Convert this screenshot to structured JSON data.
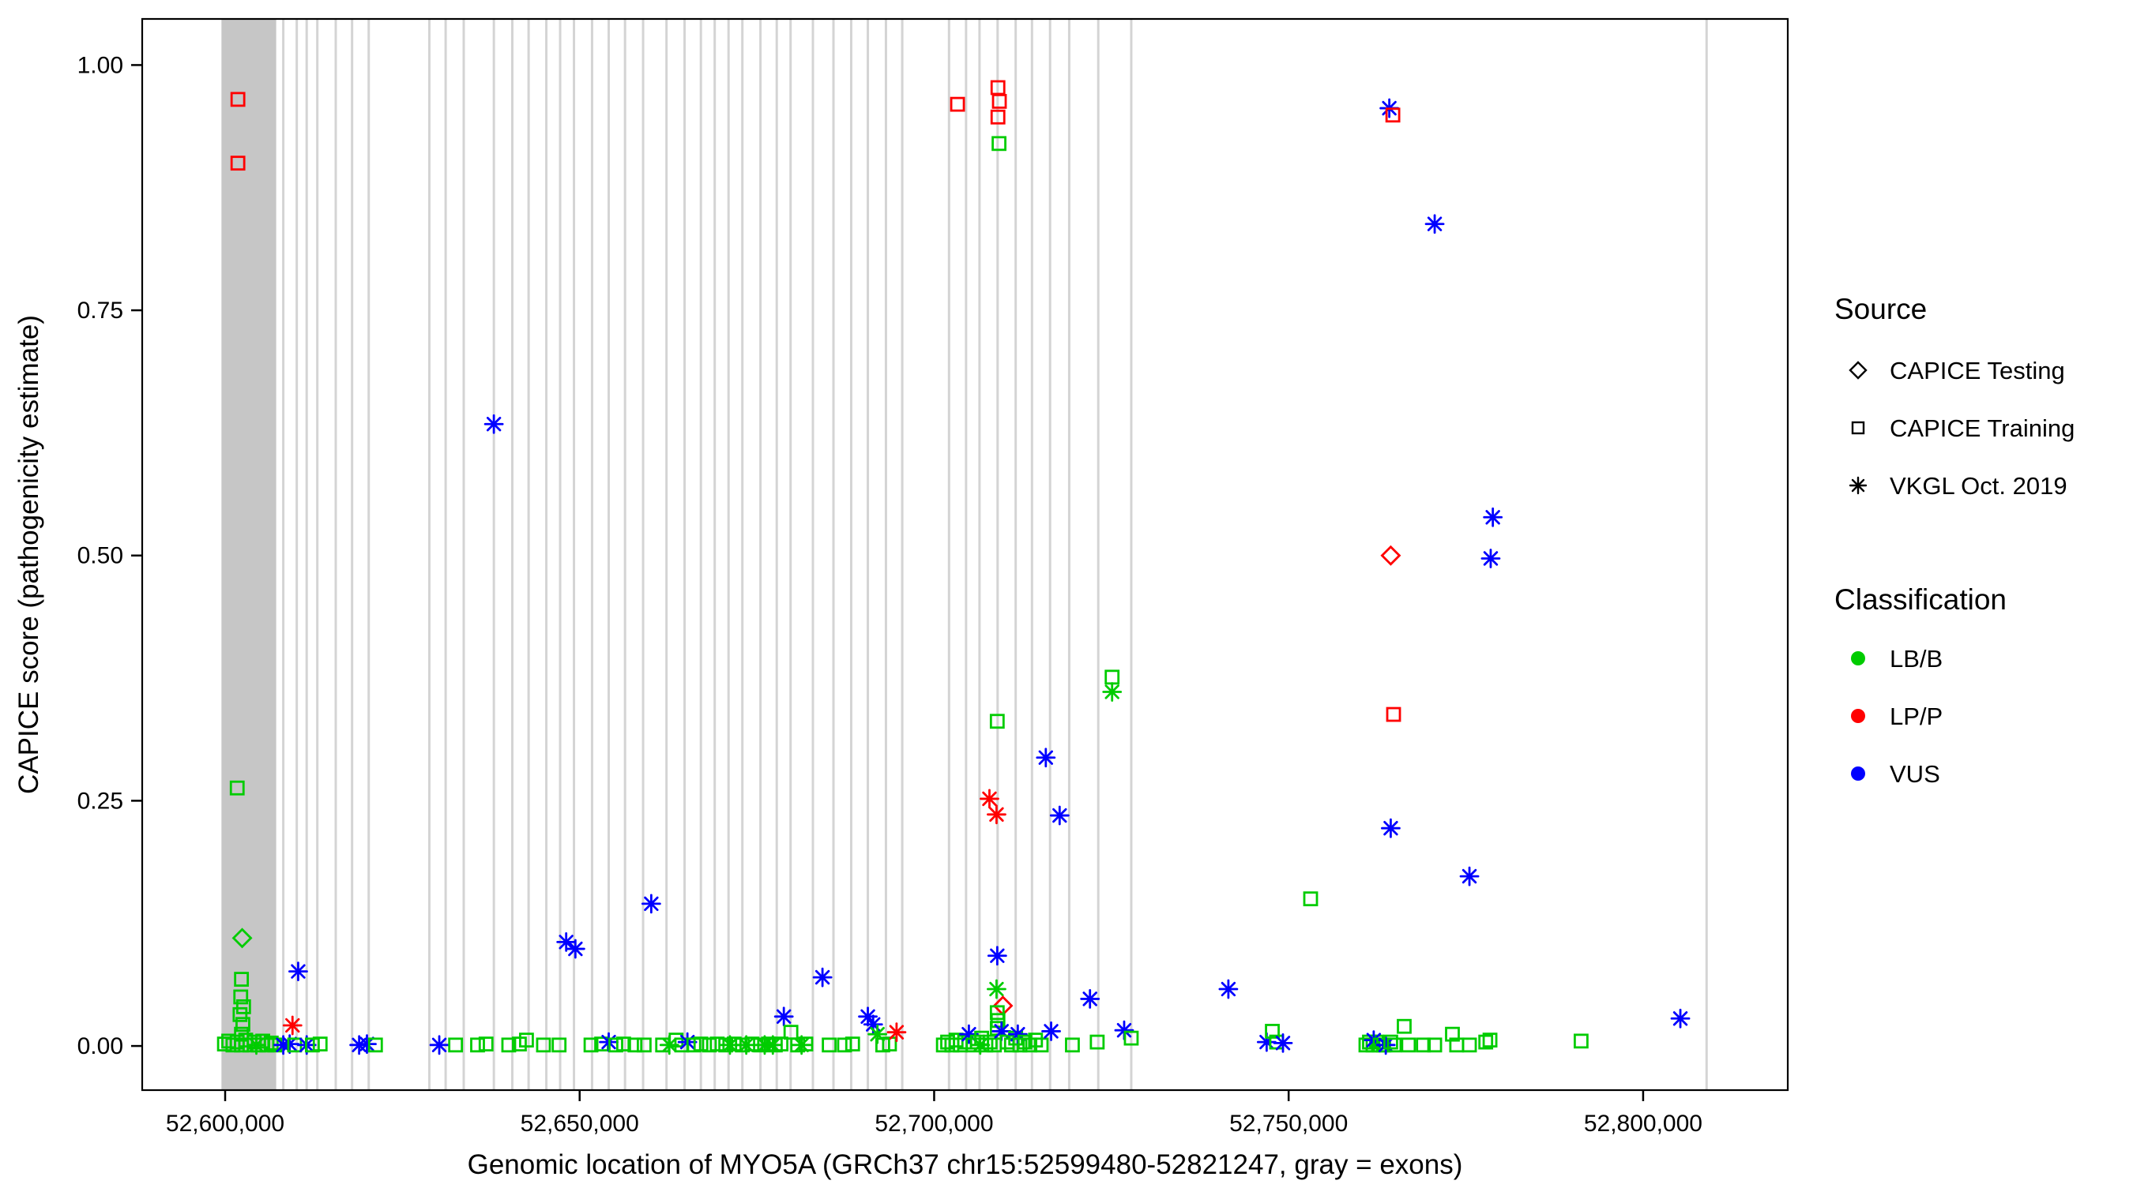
{
  "chart_data": {
    "type": "scatter",
    "title": "",
    "xlabel": "Genomic location of MYO5A (GRCh37 chr15:52599480-52821247, gray = exons)",
    "ylabel": "CAPICE score (pathogenicity estimate)",
    "x_range": [
      52588300,
      52820400
    ],
    "y_range": [
      -0.045,
      1.047
    ],
    "x_ticks": {
      "values": [
        52600000,
        52650000,
        52700000,
        52750000,
        52800000
      ],
      "labels": [
        "52,600,000",
        "52,650,000",
        "52,700,000",
        "52,750,000",
        "52,800,000"
      ]
    },
    "y_ticks": {
      "values": [
        0,
        0.25,
        0.5,
        0.75,
        1.0
      ],
      "labels": [
        "0.00",
        "0.25",
        "0.50",
        "0.75",
        "1.00"
      ]
    },
    "grid": "off",
    "exon_band": [
      52599480,
      52607200
    ],
    "exon_lines": [
      52608200,
      52610100,
      52611500,
      52613000,
      52615600,
      52617900,
      52620250,
      52628800,
      52631100,
      52633650,
      52637900,
      52640500,
      52642800,
      52645300,
      52647250,
      52649200,
      52651750,
      52654100,
      52656400,
      52658950,
      52662250,
      52664800,
      52667100,
      52669050,
      52671000,
      52672950,
      52675500,
      52677800,
      52679750,
      52682900,
      52685800,
      52688300,
      52690650,
      52693200,
      52695500,
      52702100,
      52704500,
      52706400,
      52708950,
      52711500,
      52713800,
      52716350,
      52719050,
      52723150,
      52727800,
      52808950
    ],
    "colors": {
      "LB/B": "#00cc00",
      "LP/P": "#ff0000",
      "VUS": "#0000ff",
      "exon_band": "#c6c6c6",
      "exon_line": "#d4d4d4",
      "axis": "#000000"
    },
    "class_map": {
      "g": "LB/B",
      "r": "LP/P",
      "b": "VUS"
    },
    "shape_map": {
      "sq": "CAPICE Training",
      "di": "CAPICE Testing",
      "as": "VKGL Oct. 2019"
    },
    "legend": {
      "source": {
        "title": "Source",
        "items": [
          {
            "label": "CAPICE Testing",
            "shape": "di"
          },
          {
            "label": "CAPICE Training",
            "shape": "sq"
          },
          {
            "label": "VKGL Oct. 2019",
            "shape": "as"
          }
        ]
      },
      "classification": {
        "title": "Classification",
        "items": [
          {
            "label": "LB/B",
            "color": "#00cc00"
          },
          {
            "label": "LP/P",
            "color": "#ff0000"
          },
          {
            "label": "VUS",
            "color": "#0000ff"
          }
        ]
      }
    },
    "points": [
      [
        52601800,
        0.965,
        "r",
        "sq"
      ],
      [
        52601800,
        0.9,
        "r",
        "sq"
      ],
      [
        52601700,
        0.263,
        "g",
        "sq"
      ],
      [
        52602400,
        0.11,
        "g",
        "di"
      ],
      [
        52602300,
        0.068,
        "g",
        "sq"
      ],
      [
        52602200,
        0.05,
        "g",
        "sq"
      ],
      [
        52602600,
        0.04,
        "g",
        "sq"
      ],
      [
        52602100,
        0.032,
        "g",
        "sq"
      ],
      [
        52602500,
        0.022,
        "g",
        "sq"
      ],
      [
        52602300,
        0.012,
        "g",
        "sq"
      ],
      [
        52599900,
        0.002,
        "g",
        "sq"
      ],
      [
        52600500,
        0.005,
        "g",
        "sq"
      ],
      [
        52601100,
        0.001,
        "g",
        "sq"
      ],
      [
        52601700,
        0.004,
        "g",
        "sq"
      ],
      [
        52602300,
        0.001,
        "g",
        "sq"
      ],
      [
        52602900,
        0.006,
        "g",
        "sq"
      ],
      [
        52603500,
        0.001,
        "g",
        "sq"
      ],
      [
        52604100,
        0.004,
        "g",
        "sq"
      ],
      [
        52604700,
        0.001,
        "g",
        "sq"
      ],
      [
        52605300,
        0.005,
        "g",
        "sq"
      ],
      [
        52605900,
        0.001,
        "g",
        "sq"
      ],
      [
        52606500,
        0.003,
        "g",
        "sq"
      ],
      [
        52607000,
        0.001,
        "g",
        "sq"
      ],
      [
        52604400,
        0.001,
        "g",
        "as"
      ],
      [
        52608200,
        0.001,
        "b",
        "as"
      ],
      [
        52609100,
        0.002,
        "b",
        "as"
      ],
      [
        52609500,
        0.021,
        "r",
        "as"
      ],
      [
        52610300,
        0.076,
        "b",
        "as"
      ],
      [
        52609800,
        0.001,
        "g",
        "sq"
      ],
      [
        52611500,
        0.001,
        "b",
        "as"
      ],
      [
        52612300,
        0.001,
        "g",
        "sq"
      ],
      [
        52613400,
        0.002,
        "g",
        "sq"
      ],
      [
        52618900,
        0.001,
        "b",
        "as"
      ],
      [
        52620000,
        0.002,
        "b",
        "as"
      ],
      [
        52621200,
        0.001,
        "g",
        "sq"
      ],
      [
        52630200,
        0.001,
        "b",
        "as"
      ],
      [
        52632500,
        0.001,
        "g",
        "sq"
      ],
      [
        52635600,
        0.001,
        "g",
        "sq"
      ],
      [
        52636800,
        0.002,
        "g",
        "sq"
      ],
      [
        52637900,
        0.634,
        "b",
        "as"
      ],
      [
        52640000,
        0.001,
        "g",
        "sq"
      ],
      [
        52641500,
        0.002,
        "g",
        "sq"
      ],
      [
        52642500,
        0.006,
        "g",
        "sq"
      ],
      [
        52644900,
        0.001,
        "g",
        "sq"
      ],
      [
        52647100,
        0.001,
        "g",
        "sq"
      ],
      [
        52648100,
        0.106,
        "b",
        "as"
      ],
      [
        52649400,
        0.099,
        "b",
        "as"
      ],
      [
        52651600,
        0.001,
        "g",
        "sq"
      ],
      [
        52653100,
        0.002,
        "g",
        "sq"
      ],
      [
        52654100,
        0.004,
        "b",
        "as"
      ],
      [
        52655100,
        0.001,
        "g",
        "sq"
      ],
      [
        52656200,
        0.002,
        "g",
        "sq"
      ],
      [
        52657800,
        0.001,
        "g",
        "sq"
      ],
      [
        52659100,
        0.001,
        "g",
        "sq"
      ],
      [
        52660100,
        0.145,
        "b",
        "as"
      ],
      [
        52661700,
        0.001,
        "g",
        "sq"
      ],
      [
        52662650,
        0.001,
        "g",
        "as"
      ],
      [
        52663600,
        0.006,
        "g",
        "sq"
      ],
      [
        52664400,
        0.001,
        "g",
        "sq"
      ],
      [
        52665200,
        0.004,
        "b",
        "as"
      ],
      [
        52666100,
        0.001,
        "g",
        "sq"
      ],
      [
        52667100,
        0.002,
        "g",
        "sq"
      ],
      [
        52668300,
        0.001,
        "g",
        "sq"
      ],
      [
        52669400,
        0.002,
        "g",
        "sq"
      ],
      [
        52670600,
        0.001,
        "g",
        "sq"
      ],
      [
        52671200,
        0.001,
        "g",
        "as"
      ],
      [
        52671800,
        0.002,
        "g",
        "sq"
      ],
      [
        52672950,
        0.001,
        "g",
        "sq"
      ],
      [
        52673500,
        0.001,
        "g",
        "as"
      ],
      [
        52674300,
        0.002,
        "g",
        "sq"
      ],
      [
        52675500,
        0.001,
        "g",
        "sq"
      ],
      [
        52676100,
        0.001,
        "g",
        "as"
      ],
      [
        52676650,
        0.002,
        "g",
        "sq"
      ],
      [
        52677250,
        0.001,
        "g",
        "as"
      ],
      [
        52677600,
        0.001,
        "g",
        "sq"
      ],
      [
        52678400,
        0.002,
        "g",
        "sq"
      ],
      [
        52678800,
        0.03,
        "b",
        "as"
      ],
      [
        52679800,
        0.014,
        "g",
        "sq"
      ],
      [
        52680750,
        0.001,
        "g",
        "sq"
      ],
      [
        52681300,
        0.001,
        "g",
        "as"
      ],
      [
        52681900,
        0.002,
        "g",
        "sq"
      ],
      [
        52684250,
        0.07,
        "b",
        "as"
      ],
      [
        52685200,
        0.001,
        "g",
        "sq"
      ],
      [
        52687350,
        0.001,
        "g",
        "sq"
      ],
      [
        52688500,
        0.002,
        "g",
        "sq"
      ],
      [
        52690650,
        0.03,
        "b",
        "as"
      ],
      [
        52691400,
        0.022,
        "b",
        "as"
      ],
      [
        52692000,
        0.012,
        "g",
        "as"
      ],
      [
        52692750,
        0.001,
        "g",
        "sq"
      ],
      [
        52693700,
        0.002,
        "g",
        "sq"
      ],
      [
        52694700,
        0.014,
        "r",
        "as"
      ],
      [
        52703300,
        0.96,
        "r",
        "sq"
      ],
      [
        52709000,
        0.977,
        "r",
        "sq"
      ],
      [
        52709200,
        0.963,
        "r",
        "sq"
      ],
      [
        52709000,
        0.947,
        "r",
        "sq"
      ],
      [
        52709150,
        0.92,
        "g",
        "sq"
      ],
      [
        52708900,
        0.331,
        "g",
        "sq"
      ],
      [
        52707800,
        0.252,
        "r",
        "as"
      ],
      [
        52708800,
        0.236,
        "r",
        "as"
      ],
      [
        52708900,
        0.092,
        "b",
        "as"
      ],
      [
        52708800,
        0.058,
        "g",
        "as"
      ],
      [
        52709700,
        0.041,
        "r",
        "di"
      ],
      [
        52708900,
        0.034,
        "g",
        "sq"
      ],
      [
        52709000,
        0.026,
        "g",
        "sq"
      ],
      [
        52708900,
        0.018,
        "g",
        "sq"
      ],
      [
        52701300,
        0.001,
        "g",
        "sq"
      ],
      [
        52701900,
        0.004,
        "g",
        "sq"
      ],
      [
        52702500,
        0.001,
        "g",
        "sq"
      ],
      [
        52703100,
        0.006,
        "g",
        "sq"
      ],
      [
        52703700,
        0.001,
        "g",
        "sq"
      ],
      [
        52704300,
        0.004,
        "g",
        "sq"
      ],
      [
        52704900,
        0.012,
        "b",
        "as"
      ],
      [
        52705500,
        0.001,
        "g",
        "sq"
      ],
      [
        52706100,
        0.004,
        "g",
        "sq"
      ],
      [
        52706500,
        0.001,
        "g",
        "as"
      ],
      [
        52706700,
        0.008,
        "g",
        "sq"
      ],
      [
        52707300,
        0.001,
        "g",
        "sq"
      ],
      [
        52707900,
        0.004,
        "g",
        "sq"
      ],
      [
        52708500,
        0.001,
        "g",
        "sq"
      ],
      [
        52709500,
        0.015,
        "b",
        "as"
      ],
      [
        52710300,
        0.004,
        "g",
        "sq"
      ],
      [
        52710900,
        0.001,
        "g",
        "sq"
      ],
      [
        52711500,
        0.008,
        "g",
        "sq"
      ],
      [
        52711800,
        0.012,
        "b",
        "as"
      ],
      [
        52712100,
        0.001,
        "g",
        "sq"
      ],
      [
        52712800,
        0.004,
        "g",
        "sq"
      ],
      [
        52713500,
        0.001,
        "g",
        "sq"
      ],
      [
        52714300,
        0.006,
        "g",
        "sq"
      ],
      [
        52715100,
        0.001,
        "g",
        "sq"
      ],
      [
        52715750,
        0.294,
        "b",
        "as"
      ],
      [
        52716500,
        0.015,
        "b",
        "as"
      ],
      [
        52717700,
        0.235,
        "b",
        "as"
      ],
      [
        52719500,
        0.001,
        "g",
        "sq"
      ],
      [
        52721980,
        0.048,
        "b",
        "as"
      ],
      [
        52723000,
        0.004,
        "g",
        "sq"
      ],
      [
        52725100,
        0.376,
        "g",
        "sq"
      ],
      [
        52725100,
        0.361,
        "g",
        "as"
      ],
      [
        52726800,
        0.016,
        "b",
        "as"
      ],
      [
        52727800,
        0.008,
        "g",
        "sq"
      ],
      [
        52741500,
        0.058,
        "b",
        "as"
      ],
      [
        52746900,
        0.004,
        "b",
        "as"
      ],
      [
        52747700,
        0.015,
        "g",
        "sq"
      ],
      [
        52748300,
        0.004,
        "g",
        "sq"
      ],
      [
        52749200,
        0.003,
        "b",
        "as"
      ],
      [
        52753100,
        0.15,
        "g",
        "sq"
      ],
      [
        52764200,
        0.956,
        "b",
        "as"
      ],
      [
        52764700,
        0.949,
        "r",
        "sq"
      ],
      [
        52770600,
        0.838,
        "b",
        "as"
      ],
      [
        52764400,
        0.5,
        "r",
        "di"
      ],
      [
        52778800,
        0.539,
        "b",
        "as"
      ],
      [
        52778500,
        0.497,
        "b",
        "as"
      ],
      [
        52764800,
        0.338,
        "r",
        "sq"
      ],
      [
        52764400,
        0.222,
        "b",
        "as"
      ],
      [
        52775500,
        0.173,
        "b",
        "as"
      ],
      [
        52760900,
        0.001,
        "g",
        "sq"
      ],
      [
        52761400,
        0.004,
        "g",
        "sq"
      ],
      [
        52761900,
        0.001,
        "g",
        "sq"
      ],
      [
        52762400,
        0.004,
        "g",
        "sq"
      ],
      [
        52762000,
        0.006,
        "b",
        "as"
      ],
      [
        52762900,
        0.001,
        "g",
        "sq"
      ],
      [
        52763400,
        0.001,
        "g",
        "sq"
      ],
      [
        52763700,
        0.001,
        "b",
        "as"
      ],
      [
        52764400,
        0.004,
        "g",
        "sq"
      ],
      [
        52764900,
        0.001,
        "g",
        "sq"
      ],
      [
        52766300,
        0.02,
        "g",
        "sq"
      ],
      [
        52766900,
        0.001,
        "g",
        "sq"
      ],
      [
        52769000,
        0.001,
        "g",
        "sq"
      ],
      [
        52770600,
        0.001,
        "g",
        "sq"
      ],
      [
        52773100,
        0.012,
        "g",
        "sq"
      ],
      [
        52773700,
        0.001,
        "g",
        "sq"
      ],
      [
        52775500,
        0.001,
        "g",
        "sq"
      ],
      [
        52777800,
        0.004,
        "g",
        "sq"
      ],
      [
        52778400,
        0.006,
        "g",
        "sq"
      ],
      [
        52791250,
        0.005,
        "g",
        "sq"
      ],
      [
        52805250,
        0.028,
        "b",
        "as"
      ]
    ]
  }
}
